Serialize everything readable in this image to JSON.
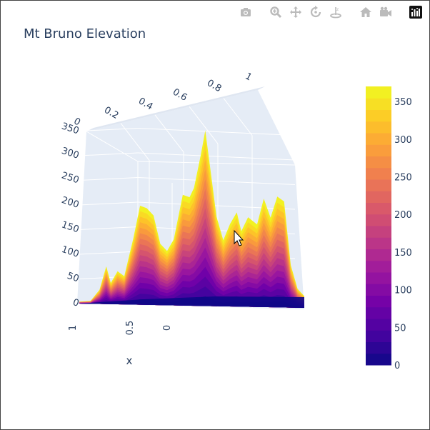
{
  "chart_title": "Mt Bruno Elevation",
  "toolbar": {
    "buttons": [
      "camera-icon",
      "zoom-icon",
      "pan-icon",
      "orbit-rotation-icon",
      "turntable-rotation-icon",
      "reset-camera-icon",
      "reset-view-icon",
      "plotly-logo"
    ]
  },
  "colors": {
    "title": "#2a3f5f",
    "grid": "#ffffff",
    "pane": "#e5ecf6",
    "plasma": [
      "#0d0887",
      "#46039f",
      "#7201a8",
      "#9c179e",
      "#bd3786",
      "#d8576b",
      "#ed7953",
      "#fb9f3a",
      "#fdca26",
      "#f0f921"
    ]
  },
  "chart_data": {
    "type": "surface",
    "title": "Mt Bruno Elevation",
    "xlabel": "x",
    "ylabel": "",
    "zlabel": "",
    "x_ticks": [
      "1",
      "0.5",
      "0"
    ],
    "y_ticks": [
      "0",
      "0.2",
      "0.4",
      "0.6",
      "0.8",
      "1"
    ],
    "z_ticks": [
      "0",
      "50",
      "100",
      "150",
      "200",
      "250",
      "300",
      "350"
    ],
    "colorbar_ticks": [
      "0",
      "50",
      "100",
      "150",
      "200",
      "250",
      "300",
      "350"
    ],
    "colorbar_range": [
      0,
      370
    ],
    "colorscale": "plasma",
    "z_range": [
      0,
      370
    ],
    "grid": true,
    "legend": "colorbar-right",
    "ridge_profile": [
      {
        "u": 0.0,
        "z": 4
      },
      {
        "u": 0.05,
        "z": 6
      },
      {
        "u": 0.09,
        "z": 30
      },
      {
        "u": 0.12,
        "z": 80
      },
      {
        "u": 0.14,
        "z": 45
      },
      {
        "u": 0.17,
        "z": 70
      },
      {
        "u": 0.2,
        "z": 60
      },
      {
        "u": 0.24,
        "z": 140
      },
      {
        "u": 0.27,
        "z": 210
      },
      {
        "u": 0.3,
        "z": 205
      },
      {
        "u": 0.33,
        "z": 190
      },
      {
        "u": 0.36,
        "z": 130
      },
      {
        "u": 0.39,
        "z": 115
      },
      {
        "u": 0.42,
        "z": 140
      },
      {
        "u": 0.46,
        "z": 235
      },
      {
        "u": 0.49,
        "z": 230
      },
      {
        "u": 0.51,
        "z": 250
      },
      {
        "u": 0.54,
        "z": 320
      },
      {
        "u": 0.56,
        "z": 372
      },
      {
        "u": 0.58,
        "z": 300
      },
      {
        "u": 0.61,
        "z": 190
      },
      {
        "u": 0.64,
        "z": 140
      },
      {
        "u": 0.67,
        "z": 175
      },
      {
        "u": 0.7,
        "z": 200
      },
      {
        "u": 0.72,
        "z": 160
      },
      {
        "u": 0.75,
        "z": 190
      },
      {
        "u": 0.79,
        "z": 175
      },
      {
        "u": 0.82,
        "z": 230
      },
      {
        "u": 0.85,
        "z": 190
      },
      {
        "u": 0.88,
        "z": 235
      },
      {
        "u": 0.91,
        "z": 225
      },
      {
        "u": 0.94,
        "z": 90
      },
      {
        "u": 0.97,
        "z": 40
      },
      {
        "u": 1.0,
        "z": 25
      }
    ]
  }
}
